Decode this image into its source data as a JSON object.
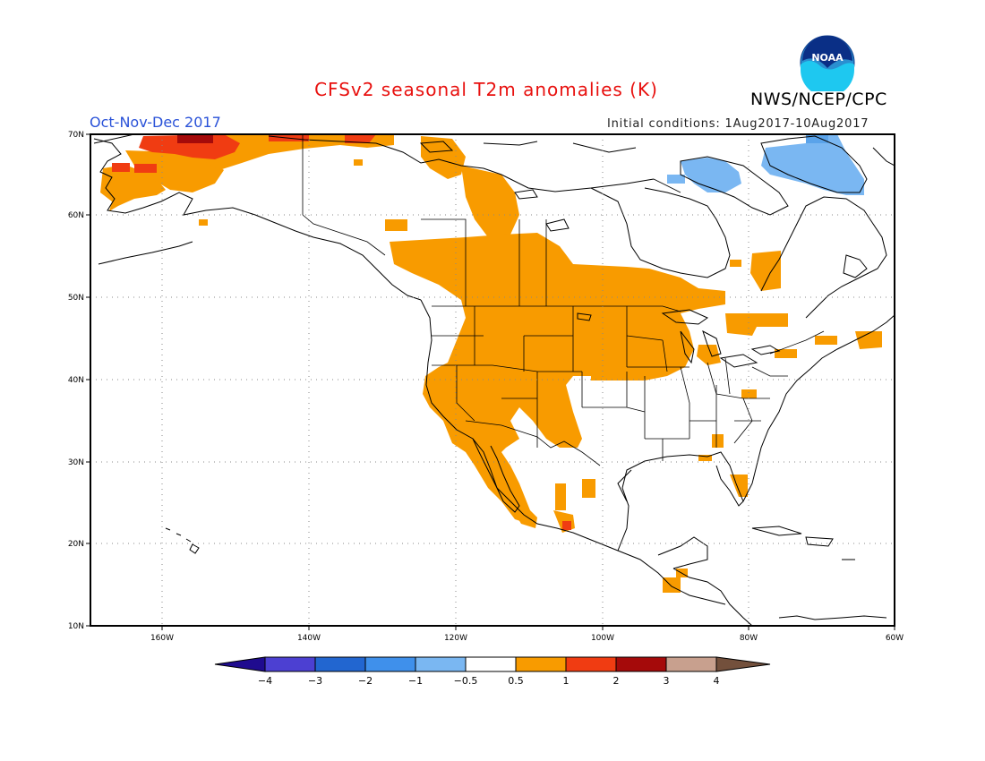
{
  "header": {
    "title": "CFSv2 seasonal T2m anomalies (K)",
    "agency": "NWS/NCEP/CPC",
    "logo_text": "NOAA",
    "season": "Oct-Nov-Dec 2017",
    "initial_conditions": "Initial conditions: 1Aug2017-10Aug2017"
  },
  "map": {
    "lon_range": [
      -172,
      -60
    ],
    "lat_range": [
      10,
      70
    ],
    "lon_ticks": [
      "160W",
      "140W",
      "120W",
      "100W",
      "80W",
      "60W"
    ],
    "lat_ticks": [
      "10N",
      "20N",
      "30N",
      "40N",
      "50N",
      "60N",
      "70N"
    ],
    "grid": "dotted",
    "anomaly_regions": [
      {
        "category": "1 to 2",
        "color": "#f03c12",
        "area": "Northern and western Alaska coast"
      },
      {
        "category": "2 to 3",
        "color": "#a50a0a",
        "area": "North Slope of Alaska"
      },
      {
        "category": "0.5 to 1",
        "color": "#f89b00",
        "area": "Western Canada, western and northern-central United States, northwestern Mexico"
      },
      {
        "category": "-1 to -0.5",
        "color": "#7ab7f2",
        "area": "Baffin Island and northern Hudson Bay"
      }
    ]
  },
  "colorbar": {
    "colors": [
      "#1f0b8f",
      "#4c40d2",
      "#2266d0",
      "#3f90eb",
      "#7ab7f2",
      "#ffffff",
      "#f89b00",
      "#f03c12",
      "#a50a0a",
      "#c8a08e",
      "#73503c"
    ],
    "labels": [
      "−4",
      "−3",
      "−2",
      "−1",
      "−0.5",
      "0.5",
      "1",
      "2",
      "3",
      "4"
    ]
  }
}
